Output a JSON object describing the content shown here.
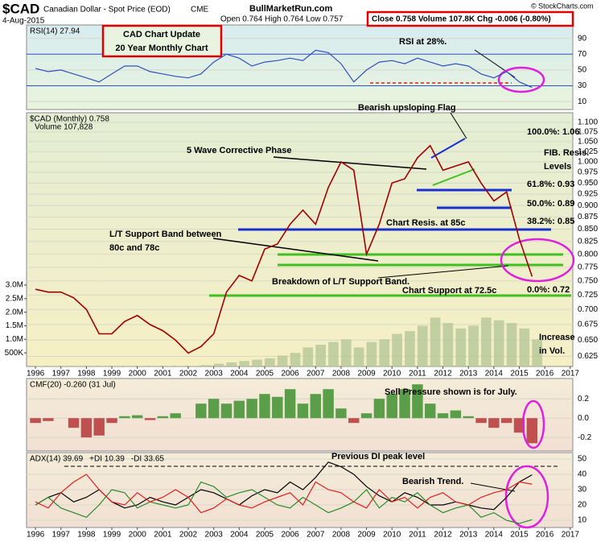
{
  "header": {
    "symbol": "$CAD",
    "name": "Canadian Dollar - Spot Price (EOD)",
    "exchange": "CME",
    "date": "4-Aug-2015",
    "site": "BullMarketRun.com",
    "ohlc": "Open 0.764  High 0.764  Low 0.757",
    "summary": "Close 0.758  Volume 107.8K  Chg -0.006 (-0.80%)",
    "copyright": "© StockCharts.com",
    "box_title": "CAD Chart Update",
    "box_subtitle": "20 Year Monthly Chart"
  },
  "chart_data": [
    {
      "type": "line",
      "xlim": [
        1995.65,
        2017.1
      ],
      "ylim": [
        0,
        107
      ],
      "yticks": [
        10,
        30,
        50,
        70,
        90
      ],
      "grid": true,
      "x": [
        1996,
        1996.5,
        1997,
        1997.5,
        1998,
        1998.5,
        1999,
        1999.5,
        2000,
        2000.5,
        2001,
        2001.5,
        2002,
        2002.5,
        2003,
        2003.5,
        2004,
        2004.5,
        2005,
        2005.5,
        2006,
        2006.5,
        2007,
        2007.5,
        2008,
        2008.5,
        2009,
        2009.5,
        2010,
        2010.5,
        2011,
        2011.5,
        2012,
        2012.5,
        2013,
        2013.5,
        2014,
        2014.5,
        2015,
        2015.5
      ],
      "series": [
        {
          "name": "RSI(14) 27.94",
          "color": "#3050c0",
          "values": [
            52,
            48,
            50,
            45,
            40,
            35,
            45,
            55,
            55,
            48,
            45,
            42,
            40,
            45,
            60,
            70,
            65,
            55,
            60,
            62,
            65,
            62,
            75,
            72,
            58,
            35,
            50,
            60,
            62,
            58,
            65,
            60,
            55,
            58,
            55,
            45,
            40,
            48,
            35,
            27.94
          ]
        }
      ],
      "annotations": [
        "RSI at 28%."
      ]
    },
    {
      "type": "line",
      "log_scale": true,
      "xlim": [
        1995.65,
        2017.1
      ],
      "ylim": [
        0.61,
        1.126
      ],
      "grid": true,
      "xticks": [
        1996,
        1997,
        1998,
        1999,
        2000,
        2001,
        2002,
        2003,
        2004,
        2005,
        2006,
        2007,
        2008,
        2009,
        2010,
        2011,
        2012,
        2013,
        2014,
        2015,
        2016,
        2017
      ],
      "yticks": [
        {
          "value": 0.625,
          "label": "0.625"
        },
        {
          "value": 0.65,
          "label": "0.650"
        },
        {
          "value": 0.675,
          "label": "0.675"
        },
        {
          "value": 0.7,
          "label": "0.700"
        },
        {
          "value": 0.725,
          "label": "0.725"
        },
        {
          "value": 0.75,
          "label": "0.750"
        },
        {
          "value": 0.775,
          "label": "0.775"
        },
        {
          "value": 0.8,
          "label": "0.800"
        },
        {
          "value": 0.825,
          "label": "0.825"
        },
        {
          "value": 0.85,
          "label": "0.850"
        },
        {
          "value": 0.875,
          "label": "0.875"
        },
        {
          "value": 0.9,
          "label": "0.900"
        },
        {
          "value": 0.925,
          "label": "0.925"
        },
        {
          "value": 0.95,
          "label": "0.950"
        },
        {
          "value": 0.975,
          "label": "0.975"
        },
        {
          "value": 1.0,
          "label": "1.000"
        },
        {
          "value": 1.025,
          "label": "1.025"
        },
        {
          "value": 1.05,
          "label": "1.050"
        },
        {
          "value": 1.075,
          "label": "1.075"
        },
        {
          "value": 1.1,
          "label": "1.100"
        }
      ],
      "y2lim": [
        0,
        9350000
      ],
      "y2ticks": [
        {
          "value": 500000,
          "label": "500K"
        },
        {
          "value": 1000000,
          "label": "1.0M"
        },
        {
          "value": 1500000,
          "label": "1.5M"
        },
        {
          "value": 2000000,
          "label": "2.0M"
        },
        {
          "value": 2500000,
          "label": "2.5M"
        },
        {
          "value": 3000000,
          "label": "3.0M"
        }
      ],
      "x": [
        1996,
        1996.5,
        1997,
        1997.5,
        1998,
        1998.5,
        1999,
        1999.5,
        2000,
        2000.5,
        2001,
        2001.5,
        2002,
        2002.5,
        2003,
        2003.5,
        2004,
        2004.5,
        2005,
        2005.5,
        2006,
        2006.5,
        2007,
        2007.5,
        2008,
        2008.5,
        2009,
        2009.5,
        2010,
        2010.5,
        2011,
        2011.5,
        2012,
        2012.5,
        2013,
        2013.5,
        2014,
        2014.5,
        2015,
        2015.5
      ],
      "series": [
        {
          "name": "$CAD (Monthly) 0.758",
          "color": "#a00000",
          "values": [
            0.735,
            0.73,
            0.73,
            0.72,
            0.7,
            0.66,
            0.66,
            0.68,
            0.69,
            0.675,
            0.665,
            0.65,
            0.63,
            0.64,
            0.66,
            0.73,
            0.76,
            0.75,
            0.81,
            0.82,
            0.86,
            0.89,
            0.86,
            0.94,
            1.0,
            0.98,
            0.8,
            0.86,
            0.95,
            0.96,
            1.01,
            1.04,
            0.98,
            0.99,
            1.0,
            0.95,
            0.91,
            0.93,
            0.83,
            0.758
          ]
        },
        {
          "name": "Volume 107,828",
          "color": "#b9c99a",
          "axis": "y2",
          "values": [
            20000,
            20000,
            20000,
            20000,
            20000,
            20000,
            20000,
            20000,
            20000,
            20000,
            20000,
            20000,
            20000,
            50000,
            100000,
            150000,
            200000,
            250000,
            300000,
            400000,
            500000,
            700000,
            800000,
            900000,
            1000000,
            700000,
            900000,
            1000000,
            1200000,
            1300000,
            1500000,
            1800000,
            1600000,
            1400000,
            1500000,
            1800000,
            1700000,
            1600000,
            1400000,
            1000000
          ]
        }
      ],
      "annotations": [
        "5 Wave Corrective Phase",
        "Bearish upsloping Flag",
        "FIB. Resis.",
        "Levels",
        "100.0%: 1.06",
        "61.8%: 0.93",
        "50.0%: 0.89",
        "38.2%: 0.85",
        "0.0%: 0.72",
        "Chart Resis. at 85c",
        "L/T Support Band between",
        "80c and 78c",
        "Breakdown of L/T Support Band.",
        "Chart Support at 72.5c",
        "Increase",
        "in Vol."
      ]
    },
    {
      "type": "bar",
      "xlim": [
        1995.65,
        2017.1
      ],
      "ylim": [
        -0.34,
        0.41
      ],
      "yticks": [
        0.2,
        {
          "value": 0,
          "label": "0.0"
        },
        -0.2
      ],
      "grid": true,
      "x": [
        1996,
        1996.5,
        1997,
        1997.5,
        1998,
        1998.5,
        1999,
        1999.5,
        2000,
        2000.5,
        2001,
        2001.5,
        2002,
        2002.5,
        2003,
        2003.5,
        2004,
        2004.5,
        2005,
        2005.5,
        2006,
        2006.5,
        2007,
        2007.5,
        2008,
        2008.5,
        2009,
        2009.5,
        2010,
        2010.5,
        2011,
        2011.5,
        2012,
        2012.5,
        2013,
        2013.5,
        2014,
        2014.5,
        2015,
        2015.5
      ],
      "series": [
        {
          "name": "CMF(20) -0.260 (31 Jul)",
          "color": "#5a9e4a",
          "negative_color": "#c05050",
          "values": [
            -0.05,
            -0.03,
            0.0,
            -0.1,
            -0.2,
            -0.18,
            -0.05,
            0.02,
            0.03,
            -0.02,
            0.02,
            0.05,
            0.0,
            0.15,
            0.2,
            0.15,
            0.18,
            0.2,
            0.25,
            0.22,
            0.3,
            0.15,
            0.25,
            0.3,
            0.1,
            -0.05,
            0.05,
            0.2,
            0.25,
            0.3,
            0.35,
            0.15,
            0.05,
            0.08,
            0.02,
            -0.05,
            -0.1,
            -0.05,
            -0.15,
            -0.26
          ]
        }
      ],
      "annotations": [
        "Sell Pressure shown is for July."
      ]
    },
    {
      "type": "line",
      "xlim": [
        1995.65,
        2017.1
      ],
      "ylim": [
        5.3,
        54.2
      ],
      "yticks": [
        50,
        40,
        30,
        20,
        10
      ],
      "grid": true,
      "xticks": [
        1996,
        1997,
        1998,
        1999,
        2000,
        2001,
        2002,
        2003,
        2004,
        2005,
        2006,
        2007,
        2008,
        2009,
        2010,
        2011,
        2012,
        2013,
        2014,
        2015,
        2016,
        2017
      ],
      "x": [
        1996,
        1996.5,
        1997,
        1997.5,
        1998,
        1998.5,
        1999,
        1999.5,
        2000,
        2000.5,
        2001,
        2001.5,
        2002,
        2002.5,
        2003,
        2003.5,
        2004,
        2004.5,
        2005,
        2005.5,
        2006,
        2006.5,
        2007,
        2007.5,
        2008,
        2008.5,
        2009,
        2009.5,
        2010,
        2010.5,
        2011,
        2011.5,
        2012,
        2012.5,
        2013,
        2013.5,
        2014,
        2014.5,
        2015,
        2015.5
      ],
      "series": [
        {
          "name": "ADX(14) 39.69",
          "color": "#000000",
          "values": [
            20,
            25,
            28,
            22,
            25,
            30,
            22,
            18,
            20,
            25,
            22,
            20,
            25,
            30,
            28,
            24,
            20,
            26,
            30,
            28,
            35,
            30,
            38,
            48,
            45,
            40,
            32,
            26,
            22,
            28,
            25,
            20,
            20,
            22,
            20,
            18,
            17,
            25,
            35,
            39.69
          ]
        },
        {
          "name": "+DI 10.39",
          "color": "#2a8a2a",
          "values": [
            20,
            25,
            18,
            15,
            12,
            20,
            30,
            28,
            18,
            22,
            20,
            18,
            20,
            35,
            32,
            25,
            28,
            30,
            25,
            20,
            18,
            25,
            20,
            15,
            18,
            22,
            30,
            18,
            25,
            22,
            28,
            20,
            15,
            18,
            20,
            12,
            15,
            10,
            8,
            10.39
          ]
        },
        {
          "name": "-DI 33.65",
          "color": "#e02020",
          "values": [
            22,
            18,
            28,
            35,
            40,
            30,
            22,
            20,
            28,
            22,
            25,
            30,
            25,
            15,
            18,
            24,
            20,
            18,
            22,
            25,
            28,
            20,
            35,
            30,
            28,
            22,
            18,
            30,
            22,
            25,
            18,
            25,
            28,
            22,
            20,
            25,
            28,
            30,
            35,
            33.65
          ]
        }
      ],
      "annotations": [
        "Previous DI peak level",
        "Bearish Trend."
      ]
    }
  ]
}
